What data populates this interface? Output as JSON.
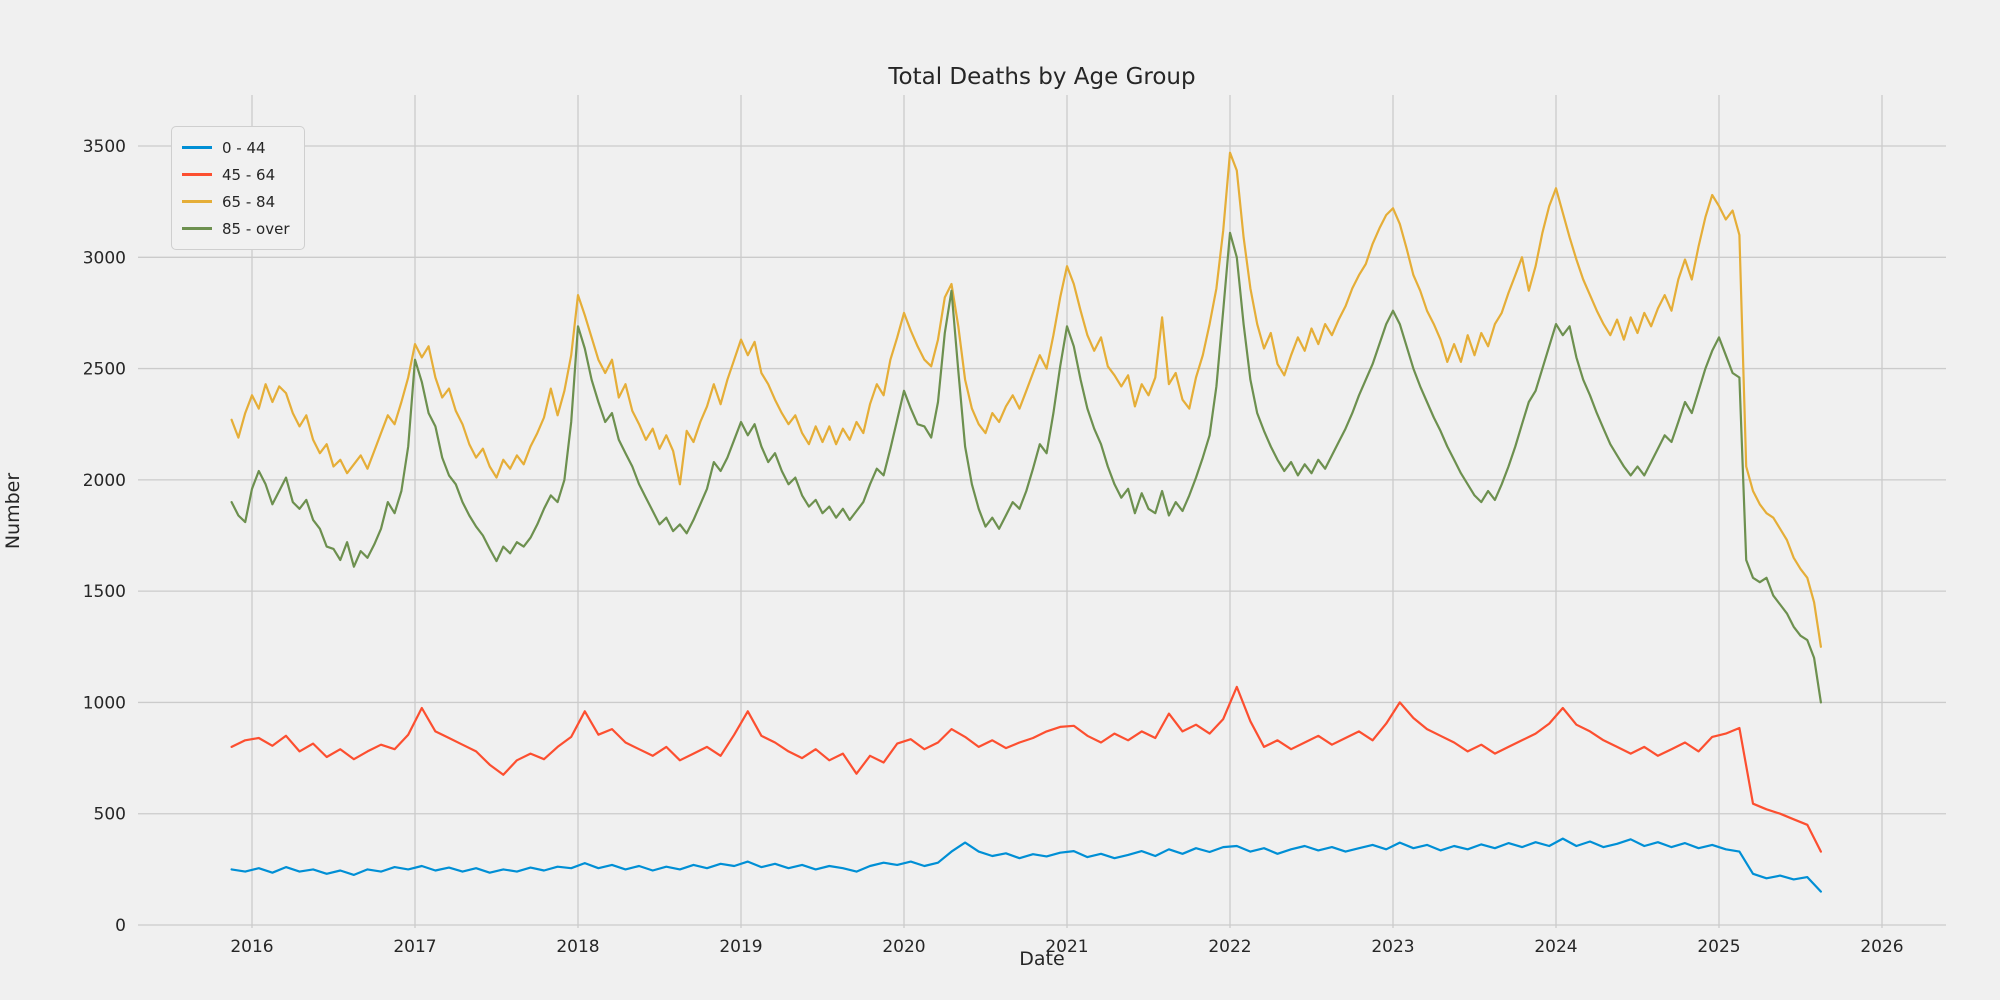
{
  "figure": {
    "background_color": "#f0f0f0",
    "grid_color": "#cbcbcb",
    "text_color": "#262626",
    "legend_background": "#f1f1f1",
    "legend_border": "#cfcfcf"
  },
  "chart_data": {
    "type": "line",
    "title": "Total Deaths by Age Group",
    "xlabel": "Date",
    "ylabel": "Number",
    "grid": true,
    "legend_position": "upper left",
    "x_axis": {
      "label": "Date",
      "ticks": [
        2016,
        2017,
        2018,
        2019,
        2020,
        2021,
        2022,
        2023,
        2024,
        2025,
        2026
      ],
      "min": 2015.3,
      "max": 2026.4
    },
    "y_axis": {
      "label": "Number",
      "ticks": [
        0,
        500,
        1000,
        1500,
        2000,
        2500,
        3000,
        3500
      ],
      "min": 0,
      "max": 3730
    },
    "series": [
      {
        "name": "0 - 44",
        "color": "#008fd5",
        "t0": 2015.875,
        "step": 0.0833333,
        "values": [
          250,
          240,
          255,
          235,
          260,
          240,
          250,
          230,
          245,
          225,
          250,
          240,
          260,
          250,
          265,
          245,
          258,
          240,
          255,
          235,
          250,
          240,
          258,
          245,
          262,
          255,
          278,
          255,
          270,
          250,
          265,
          245,
          262,
          250,
          270,
          255,
          275,
          265,
          285,
          260,
          275,
          255,
          270,
          250,
          265,
          255,
          240,
          265,
          280,
          270,
          285,
          265,
          280,
          330,
          370,
          330,
          310,
          322,
          300,
          318,
          308,
          325,
          332,
          305,
          320,
          300,
          315,
          332,
          310,
          340,
          320,
          345,
          328,
          350,
          355,
          330,
          345,
          320,
          340,
          355,
          335,
          350,
          330,
          345,
          360,
          340,
          370,
          345,
          360,
          335,
          355,
          340,
          362,
          345,
          368,
          350,
          372,
          355,
          388,
          355,
          375,
          350,
          365,
          385,
          355,
          372,
          350,
          368,
          345,
          360,
          340,
          330,
          230,
          210,
          222,
          205,
          215,
          150
        ]
      },
      {
        "name": "45 - 64",
        "color": "#fc4f30",
        "t0": 2015.875,
        "step": 0.0833333,
        "values": [
          800,
          830,
          840,
          805,
          850,
          780,
          815,
          755,
          790,
          745,
          780,
          810,
          790,
          855,
          975,
          870,
          840,
          810,
          780,
          720,
          675,
          740,
          770,
          745,
          800,
          845,
          960,
          855,
          880,
          820,
          790,
          760,
          800,
          740,
          770,
          800,
          760,
          855,
          960,
          850,
          820,
          780,
          750,
          790,
          740,
          770,
          680,
          760,
          730,
          815,
          835,
          790,
          820,
          880,
          845,
          800,
          830,
          795,
          820,
          840,
          870,
          890,
          895,
          850,
          820,
          860,
          830,
          870,
          840,
          950,
          870,
          900,
          860,
          925,
          1070,
          915,
          800,
          830,
          790,
          820,
          850,
          810,
          840,
          870,
          830,
          905,
          1000,
          930,
          880,
          850,
          820,
          780,
          810,
          770,
          800,
          830,
          860,
          905,
          975,
          900,
          870,
          830,
          800,
          770,
          800,
          760,
          790,
          820,
          780,
          845,
          860,
          885,
          545,
          520,
          500,
          475,
          450,
          330
        ]
      },
      {
        "name": "65 - 84",
        "color": "#e5ae38",
        "t0": 2015.875,
        "step": 0.0416667,
        "values": [
          2270,
          2190,
          2300,
          2380,
          2320,
          2430,
          2350,
          2420,
          2390,
          2300,
          2240,
          2290,
          2180,
          2120,
          2160,
          2060,
          2090,
          2030,
          2070,
          2110,
          2050,
          2130,
          2210,
          2290,
          2250,
          2350,
          2460,
          2610,
          2550,
          2600,
          2460,
          2370,
          2410,
          2310,
          2250,
          2160,
          2100,
          2140,
          2060,
          2010,
          2090,
          2050,
          2110,
          2070,
          2150,
          2210,
          2280,
          2410,
          2290,
          2400,
          2560,
          2830,
          2740,
          2640,
          2540,
          2480,
          2540,
          2370,
          2430,
          2310,
          2250,
          2180,
          2230,
          2140,
          2200,
          2130,
          1980,
          2220,
          2170,
          2260,
          2330,
          2430,
          2340,
          2450,
          2540,
          2630,
          2560,
          2620,
          2480,
          2430,
          2360,
          2300,
          2250,
          2290,
          2210,
          2160,
          2240,
          2170,
          2240,
          2160,
          2230,
          2180,
          2260,
          2210,
          2340,
          2430,
          2380,
          2540,
          2640,
          2750,
          2670,
          2600,
          2540,
          2510,
          2630,
          2820,
          2880,
          2690,
          2450,
          2320,
          2250,
          2210,
          2300,
          2260,
          2330,
          2380,
          2320,
          2400,
          2480,
          2560,
          2500,
          2650,
          2820,
          2960,
          2880,
          2760,
          2650,
          2580,
          2640,
          2510,
          2470,
          2420,
          2470,
          2330,
          2430,
          2380,
          2460,
          2730,
          2430,
          2480,
          2360,
          2320,
          2460,
          2560,
          2700,
          2860,
          3120,
          3470,
          3390,
          3090,
          2860,
          2700,
          2590,
          2660,
          2520,
          2470,
          2560,
          2640,
          2580,
          2680,
          2610,
          2700,
          2650,
          2720,
          2780,
          2860,
          2920,
          2970,
          3060,
          3130,
          3190,
          3220,
          3150,
          3040,
          2920,
          2850,
          2760,
          2700,
          2630,
          2530,
          2610,
          2530,
          2650,
          2560,
          2660,
          2600,
          2700,
          2750,
          2840,
          2920,
          3000,
          2850,
          2960,
          3110,
          3230,
          3310,
          3200,
          3090,
          2990,
          2900,
          2830,
          2760,
          2700,
          2650,
          2720,
          2630,
          2730,
          2660,
          2750,
          2690,
          2770,
          2830,
          2760,
          2900,
          2990,
          2900,
          3050,
          3180,
          3280,
          3230,
          3170,
          3210,
          3100,
          2060,
          1950,
          1890,
          1850,
          1830,
          1780,
          1730,
          1650,
          1600,
          1560,
          1450,
          1250
        ]
      },
      {
        "name": "85 - over",
        "color": "#6d904f",
        "t0": 2015.875,
        "step": 0.0416667,
        "values": [
          1900,
          1840,
          1810,
          1960,
          2040,
          1980,
          1890,
          1950,
          2010,
          1900,
          1870,
          1910,
          1820,
          1780,
          1700,
          1690,
          1640,
          1720,
          1610,
          1680,
          1650,
          1710,
          1780,
          1900,
          1850,
          1950,
          2150,
          2540,
          2440,
          2300,
          2240,
          2100,
          2020,
          1980,
          1900,
          1840,
          1790,
          1750,
          1690,
          1635,
          1700,
          1670,
          1720,
          1700,
          1740,
          1800,
          1870,
          1930,
          1900,
          2000,
          2260,
          2690,
          2590,
          2450,
          2350,
          2260,
          2300,
          2180,
          2120,
          2060,
          1980,
          1920,
          1860,
          1800,
          1830,
          1770,
          1800,
          1760,
          1820,
          1890,
          1960,
          2080,
          2040,
          2100,
          2180,
          2260,
          2200,
          2250,
          2150,
          2080,
          2120,
          2040,
          1980,
          2010,
          1930,
          1880,
          1910,
          1850,
          1880,
          1830,
          1870,
          1820,
          1860,
          1900,
          1980,
          2050,
          2020,
          2140,
          2270,
          2400,
          2320,
          2250,
          2240,
          2190,
          2350,
          2660,
          2850,
          2490,
          2150,
          1980,
          1870,
          1790,
          1830,
          1780,
          1840,
          1900,
          1870,
          1950,
          2050,
          2160,
          2120,
          2300,
          2510,
          2690,
          2600,
          2450,
          2320,
          2230,
          2160,
          2060,
          1980,
          1920,
          1960,
          1850,
          1940,
          1870,
          1850,
          1950,
          1840,
          1900,
          1860,
          1930,
          2010,
          2100,
          2200,
          2420,
          2760,
          3110,
          3000,
          2700,
          2450,
          2300,
          2220,
          2150,
          2090,
          2040,
          2080,
          2020,
          2070,
          2030,
          2090,
          2050,
          2110,
          2170,
          2230,
          2300,
          2380,
          2450,
          2520,
          2610,
          2700,
          2760,
          2700,
          2600,
          2500,
          2420,
          2350,
          2280,
          2220,
          2150,
          2090,
          2030,
          1980,
          1930,
          1900,
          1950,
          1910,
          1980,
          2060,
          2150,
          2250,
          2350,
          2400,
          2500,
          2600,
          2700,
          2650,
          2690,
          2550,
          2450,
          2380,
          2300,
          2230,
          2160,
          2110,
          2060,
          2020,
          2060,
          2020,
          2080,
          2140,
          2200,
          2170,
          2260,
          2350,
          2300,
          2400,
          2500,
          2580,
          2640,
          2560,
          2480,
          2460,
          1640,
          1560,
          1540,
          1560,
          1480,
          1440,
          1400,
          1340,
          1300,
          1280,
          1200,
          1000
        ]
      }
    ]
  }
}
